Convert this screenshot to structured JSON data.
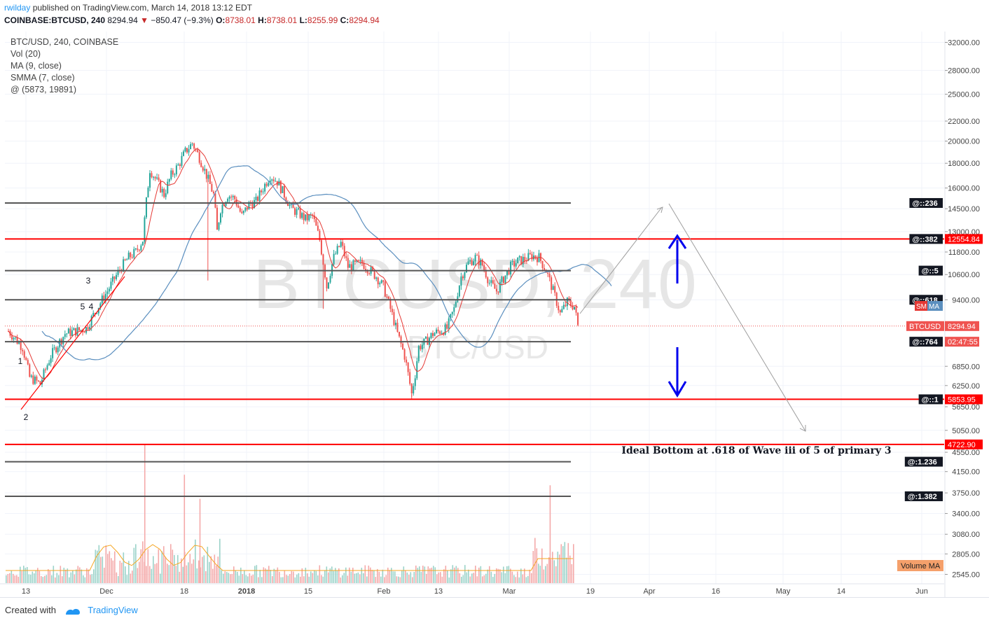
{
  "header": {
    "author": "rwilday",
    "published": "published on TradingView.com, March 14, 2018 13:12 EDT",
    "symbol_line": "COINBASE:BTCUSD, 240",
    "last": "8294.94",
    "change": "−850.47 (−9.3%)",
    "open_label": "O:",
    "open": "8738.01",
    "high_label": "H:",
    "high": "8738.01",
    "low_label": "L:",
    "low": "8255.99",
    "close_label": "C:",
    "close": "8294.94"
  },
  "legend": [
    "BTC/USD, 240, COINBASE",
    "Vol (20)",
    "MA (9, close)",
    "SMMA (7, close)",
    "@ (5873, 19891)"
  ],
  "footer": {
    "created_with": "Created with",
    "brand": "TradingView"
  },
  "colors": {
    "up": "#26a69a",
    "down": "#ef5350",
    "red_line": "#ff0000",
    "gray_line": "#555555",
    "ma": "#e53935",
    "smma": "#5b8fbf",
    "arrow": "#0000ee",
    "vol_ma": "#f5a623"
  },
  "chart_data": {
    "type": "candlestick",
    "title": "BTC/USD, 240, COINBASE",
    "watermark": "BTCUSD, 240",
    "watermark_sub": "BTC/USD",
    "y_scale": "log",
    "y_ticks": [
      "32000.00",
      "28000.00",
      "25000.00",
      "22000.00",
      "20000.00",
      "18000.00",
      "16000.00",
      "14500.00",
      "13000.00",
      "11800.00",
      "10600.00",
      "9400.00",
      "6850.00",
      "6250.00",
      "5650.00",
      "5050.00",
      "4550.00",
      "4150.00",
      "3750.00",
      "3400.00",
      "3080.00",
      "2805.00",
      "2545.00"
    ],
    "x_ticks": [
      "13",
      "Dec",
      "18",
      "2018",
      "15",
      "Feb",
      "13",
      "Mar",
      "19",
      "Apr",
      "16",
      "May",
      "14",
      "Jun"
    ],
    "price_path": [
      [
        0,
        8100
      ],
      [
        2,
        7500
      ],
      [
        3,
        6500
      ],
      [
        4.5,
        6300
      ],
      [
        6,
        7200
      ],
      [
        8,
        8000
      ],
      [
        11,
        8200
      ],
      [
        14,
        9800
      ],
      [
        16,
        11000
      ],
      [
        17,
        11500
      ],
      [
        18,
        11800
      ],
      [
        19,
        12500
      ],
      [
        19.5,
        15000
      ],
      [
        20,
        17500
      ],
      [
        21,
        16500
      ],
      [
        22,
        15500
      ],
      [
        23,
        17000
      ],
      [
        24,
        17800
      ],
      [
        25,
        19000
      ],
      [
        26,
        19800
      ],
      [
        27,
        18500
      ],
      [
        28,
        17000
      ],
      [
        29,
        15500
      ],
      [
        29.5,
        13000
      ],
      [
        30,
        14500
      ],
      [
        31,
        15500
      ],
      [
        32,
        15200
      ],
      [
        33,
        14000
      ],
      [
        34,
        14800
      ],
      [
        35,
        15000
      ],
      [
        36,
        16000
      ],
      [
        37,
        17000
      ],
      [
        38,
        16500
      ],
      [
        39,
        15500
      ],
      [
        40,
        14500
      ],
      [
        41,
        14200
      ],
      [
        42,
        13800
      ],
      [
        43,
        14000
      ],
      [
        44,
        12500
      ],
      [
        45,
        10000
      ],
      [
        46,
        11500
      ],
      [
        47,
        12300
      ],
      [
        48,
        11000
      ],
      [
        50,
        11200
      ],
      [
        52,
        10500
      ],
      [
        53,
        10000
      ],
      [
        54,
        9000
      ],
      [
        55,
        8000
      ],
      [
        56,
        7200
      ],
      [
        57,
        6000
      ],
      [
        57.5,
        6600
      ],
      [
        58,
        7500
      ],
      [
        59,
        7700
      ],
      [
        60,
        8000
      ],
      [
        62,
        8200
      ],
      [
        63,
        9000
      ],
      [
        64,
        10500
      ],
      [
        65,
        11200
      ],
      [
        66,
        11500
      ],
      [
        67,
        11100
      ],
      [
        68,
        10200
      ],
      [
        69,
        9800
      ],
      [
        70,
        10400
      ],
      [
        71,
        11000
      ],
      [
        72,
        11300
      ],
      [
        73,
        11400
      ],
      [
        74,
        11600
      ],
      [
        75,
        11500
      ],
      [
        76,
        10800
      ],
      [
        77,
        9800
      ],
      [
        78,
        8800
      ],
      [
        79,
        9300
      ],
      [
        80,
        9100
      ],
      [
        80.5,
        8300
      ]
    ],
    "series": [
      {
        "name": "MA (9, close)"
      },
      {
        "name": "SMMA (7, close)"
      }
    ],
    "volume_spikes": [
      [
        19.2,
        0.92
      ],
      [
        24.8,
        0.72
      ],
      [
        27,
        0.56
      ],
      [
        76.5,
        0.65
      ]
    ],
    "volume_ma_label": "Volume MA",
    "fib_levels": [
      {
        "label": "@::236",
        "price": 14900,
        "color": "gray"
      },
      {
        "label": "@::382",
        "price": 12554.84,
        "color": "red",
        "tag": "12554.84"
      },
      {
        "label": "@::5",
        "price": 10800,
        "color": "gray"
      },
      {
        "label": "@::618",
        "price": 9400,
        "color": "gray"
      },
      {
        "label": "@::764",
        "price": 7700,
        "color": "gray",
        "tag": "02:47:55"
      },
      {
        "label": "@::1",
        "price": 5853.95,
        "color": "red",
        "tag": "5853.95"
      },
      {
        "label": "",
        "price": 4722.9,
        "color": "red",
        "tag": "4722.90"
      },
      {
        "label": "@:1.236",
        "price": 4350,
        "color": "gray"
      },
      {
        "label": "@:1.382",
        "price": 3690,
        "color": "gray"
      }
    ],
    "price_tags": [
      {
        "label": "BTCUSD",
        "value": "8294.94"
      },
      {
        "label": "SM",
        "value": "MA"
      }
    ],
    "wave_labels": [
      "1",
      "2",
      "3",
      "4",
      "5"
    ],
    "annotation": "Ideal Bottom at .618 of Wave iii of 5 of primary 3"
  }
}
